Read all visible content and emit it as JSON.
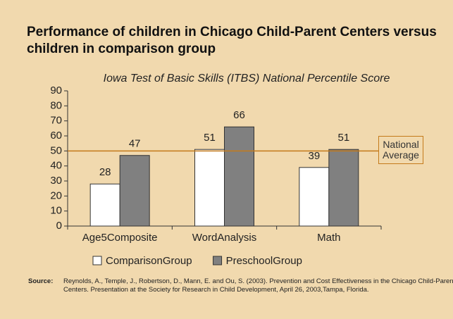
{
  "chart_data": {
    "type": "bar",
    "title": "Performance of children in Chicago Child-Parent Centers versus children in comparison group",
    "subtitle": "Iowa Test of Basic Skills (ITBS) National Percentile Score",
    "categories": [
      "Age5Composite",
      "WordAnalysis",
      "Math"
    ],
    "series": [
      {
        "name": "ComparisonGroup",
        "color": "#ffffff",
        "values": [
          28,
          51,
          39
        ]
      },
      {
        "name": "PreschoolGroup",
        "color": "#808080",
        "values": [
          47,
          66,
          51
        ]
      }
    ],
    "ylim": [
      0,
      90
    ],
    "yticks": [
      0,
      10,
      20,
      30,
      40,
      50,
      60,
      70,
      80,
      90
    ],
    "reference_line": {
      "value": 50,
      "label": "National Average",
      "color": "#c47a1a"
    },
    "legend": "bottom",
    "source_label": "Source:",
    "source": "Reynolds, A., Temple, J., Robertson, D., Mann, E. and Ou, S. (2003). Prevention and Cost Effectiveness in the Chicago Child-Parent Centers. Presentation at the Society for Research in Child Development, April 26, 2003,Tampa, Florida."
  }
}
